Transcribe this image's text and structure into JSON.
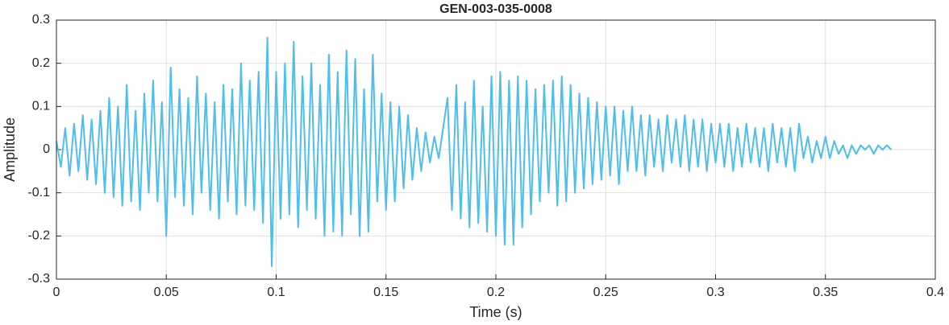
{
  "chart_data": {
    "type": "line",
    "title": "GEN-003-035-0008",
    "x_label": "Time (s)",
    "y_label": "Amplitude",
    "x": [
      0,
      0.002,
      0.004,
      0.006,
      0.008,
      0.01,
      0.012,
      0.014,
      0.016,
      0.018,
      0.02,
      0.022,
      0.024,
      0.026,
      0.028,
      0.03,
      0.032,
      0.034,
      0.036,
      0.038,
      0.04,
      0.042,
      0.044,
      0.046,
      0.048,
      0.05,
      0.052,
      0.054,
      0.056,
      0.058,
      0.06,
      0.062,
      0.064,
      0.066,
      0.068,
      0.07,
      0.072,
      0.074,
      0.076,
      0.078,
      0.08,
      0.082,
      0.084,
      0.086,
      0.088,
      0.09,
      0.092,
      0.094,
      0.096,
      0.098,
      0.1,
      0.102,
      0.104,
      0.106,
      0.108,
      0.11,
      0.112,
      0.114,
      0.116,
      0.118,
      0.12,
      0.122,
      0.124,
      0.126,
      0.128,
      0.13,
      0.132,
      0.134,
      0.136,
      0.138,
      0.14,
      0.142,
      0.144,
      0.146,
      0.148,
      0.15,
      0.152,
      0.154,
      0.156,
      0.158,
      0.16,
      0.162,
      0.164,
      0.166,
      0.168,
      0.17,
      0.172,
      0.174,
      0.176,
      0.178,
      0.18,
      0.182,
      0.184,
      0.186,
      0.188,
      0.19,
      0.192,
      0.194,
      0.196,
      0.198,
      0.2,
      0.202,
      0.204,
      0.206,
      0.208,
      0.21,
      0.212,
      0.214,
      0.216,
      0.218,
      0.22,
      0.222,
      0.224,
      0.226,
      0.228,
      0.23,
      0.232,
      0.234,
      0.236,
      0.238,
      0.24,
      0.242,
      0.244,
      0.246,
      0.248,
      0.25,
      0.252,
      0.254,
      0.256,
      0.258,
      0.26,
      0.262,
      0.264,
      0.266,
      0.268,
      0.27,
      0.272,
      0.274,
      0.276,
      0.278,
      0.28,
      0.282,
      0.284,
      0.286,
      0.288,
      0.29,
      0.292,
      0.294,
      0.296,
      0.298,
      0.3,
      0.302,
      0.304,
      0.306,
      0.308,
      0.31,
      0.312,
      0.314,
      0.316,
      0.318,
      0.32,
      0.322,
      0.324,
      0.326,
      0.328,
      0.33,
      0.332,
      0.334,
      0.336,
      0.338,
      0.34,
      0.342,
      0.344,
      0.346,
      0.348,
      0.35,
      0.352,
      0.354,
      0.356,
      0.358,
      0.36,
      0.362,
      0.364,
      0.366,
      0.368,
      0.37,
      0.372,
      0.374,
      0.376,
      0.378,
      0.38
    ],
    "series": [
      {
        "color": "#4dbeee",
        "values": [
          0.02,
          -0.04,
          0.05,
          -0.06,
          0.06,
          -0.05,
          0.08,
          -0.07,
          0.07,
          -0.08,
          0.09,
          -0.1,
          0.12,
          -0.11,
          0.1,
          -0.13,
          0.15,
          -0.12,
          0.09,
          -0.14,
          0.13,
          -0.1,
          0.16,
          -0.12,
          0.11,
          -0.2,
          0.19,
          -0.11,
          0.14,
          -0.13,
          0.12,
          -0.15,
          0.17,
          -0.1,
          0.13,
          -0.14,
          0.11,
          -0.16,
          0.15,
          -0.12,
          0.14,
          -0.15,
          0.2,
          -0.13,
          0.16,
          -0.14,
          0.18,
          -0.17,
          0.26,
          -0.27,
          0.18,
          -0.16,
          0.2,
          -0.15,
          0.25,
          -0.18,
          0.17,
          -0.14,
          0.2,
          -0.16,
          0.15,
          -0.2,
          0.22,
          -0.19,
          0.18,
          -0.2,
          0.23,
          -0.15,
          0.21,
          -0.2,
          0.14,
          -0.19,
          0.22,
          -0.12,
          0.13,
          -0.14,
          0.11,
          -0.12,
          0.1,
          -0.09,
          0.08,
          -0.07,
          0.05,
          -0.05,
          0.04,
          -0.03,
          0.03,
          -0.02,
          0.05,
          0.12,
          -0.14,
          0.15,
          -0.16,
          0.11,
          -0.18,
          0.16,
          -0.17,
          0.1,
          -0.19,
          0.17,
          -0.2,
          0.18,
          -0.22,
          0.16,
          -0.22,
          0.17,
          -0.18,
          0.16,
          -0.15,
          0.14,
          -0.12,
          0.15,
          -0.1,
          0.16,
          -0.13,
          0.17,
          -0.12,
          0.15,
          -0.1,
          0.13,
          -0.09,
          0.12,
          -0.08,
          0.11,
          -0.07,
          0.1,
          -0.06,
          0.1,
          -0.08,
          0.09,
          -0.05,
          0.1,
          -0.05,
          0.08,
          -0.06,
          0.08,
          -0.04,
          0.07,
          -0.05,
          0.08,
          -0.03,
          0.07,
          -0.04,
          0.08,
          -0.05,
          0.07,
          -0.04,
          0.07,
          -0.05,
          0.06,
          -0.03,
          0.06,
          -0.04,
          0.06,
          -0.05,
          0.05,
          -0.04,
          0.06,
          -0.03,
          0.05,
          -0.04,
          0.05,
          -0.05,
          0.06,
          -0.03,
          0.05,
          -0.04,
          0.05,
          -0.05,
          0.06,
          -0.02,
          0.03,
          -0.03,
          0.02,
          -0.02,
          0.03,
          -0.02,
          0.02,
          -0.01,
          0.01,
          -0.02,
          0.01,
          -0.01,
          0.01,
          0,
          0.01,
          -0.01,
          0.01,
          0,
          0.01,
          0
        ]
      }
    ],
    "xlim": [
      0,
      0.4
    ],
    "xticks": [
      0,
      0.05,
      0.1,
      0.15,
      0.2,
      0.25,
      0.3,
      0.35,
      0.4
    ],
    "ylim": [
      -0.3,
      0.3
    ],
    "yticks": [
      -0.3,
      -0.2,
      -0.1,
      0,
      0.1,
      0.2,
      0.3
    ],
    "grid": true
  }
}
